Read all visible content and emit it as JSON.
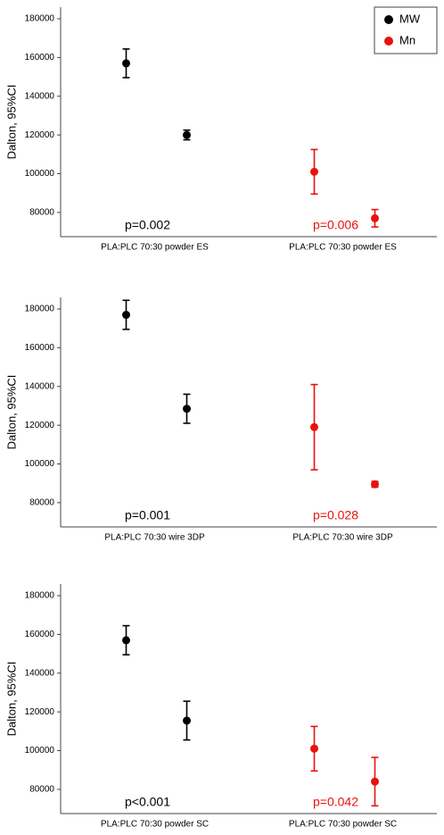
{
  "chart_data": [
    {
      "type": "errorbar",
      "ylabel": "Dalton, 95%CI",
      "categories": [
        "PLA:PLC 70:30 powder ES",
        "PLA:PLC 70:30 powder ES"
      ],
      "ylim": [
        67500,
        186000
      ],
      "yticks": [
        80000,
        100000,
        120000,
        140000,
        160000,
        180000
      ],
      "legend": "upper right",
      "series": [
        {
          "name": "MW",
          "color": "#000000",
          "values": [
            157000,
            120000
          ],
          "errors": [
            7400,
            2500
          ],
          "annotation": "p=0.002"
        },
        {
          "name": "Mn",
          "color": "#e8120c",
          "values": [
            101000,
            77000
          ],
          "errors": [
            11500,
            4500
          ],
          "annotation": "p=0.006"
        }
      ]
    },
    {
      "type": "errorbar",
      "ylabel": "Dalton, 95%CI",
      "categories": [
        "PLA:PLC 70:30 wire 3DP",
        "PLA:PLC 70:30 wire 3DP"
      ],
      "ylim": [
        67500,
        186000
      ],
      "yticks": [
        80000,
        100000,
        120000,
        140000,
        160000,
        180000
      ],
      "series": [
        {
          "color": "#000000",
          "values": [
            177000,
            128500
          ],
          "errors": [
            7500,
            7500
          ],
          "annotation": "p=0.001"
        },
        {
          "color": "#e8120c",
          "values": [
            119000,
            89500
          ],
          "errors": [
            22000,
            1500
          ],
          "annotation": "p=0.028"
        }
      ]
    },
    {
      "type": "errorbar",
      "ylabel": "Dalton, 95%CI",
      "categories": [
        "PLA:PLC 70:30 powder SC",
        "PLA:PLC 70:30 powder SC"
      ],
      "ylim": [
        67500,
        186000
      ],
      "yticks": [
        80000,
        100000,
        120000,
        140000,
        160000,
        180000
      ],
      "series": [
        {
          "color": "#000000",
          "values": [
            157000,
            115500
          ],
          "errors": [
            7500,
            10000
          ],
          "annotation": "p<0.001"
        },
        {
          "color": "#e8120c",
          "values": [
            101000,
            84000
          ],
          "errors": [
            11500,
            12500
          ],
          "annotation": "p=0.042"
        }
      ]
    }
  ]
}
